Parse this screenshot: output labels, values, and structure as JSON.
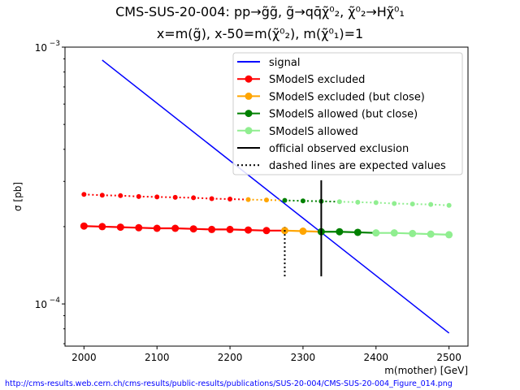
{
  "chart_data": {
    "type": "line",
    "title_line1": "CMS-SUS-20-004: pp→g̃g̃, g̃→qq̄χ̃⁰₂, χ̃⁰₂→Hχ̃⁰₁",
    "title_line2": "x=m(g̃), x-50=m(χ̃⁰₂), m(χ̃⁰₁)=1",
    "xlabel": "m(mother) [GeV]",
    "ylabel": "σ [pb]",
    "xlim": [
      1974,
      2526
    ],
    "ylim": [
      6.85e-05,
      0.001
    ],
    "yscale": "log",
    "x_ticks": [
      2000,
      2100,
      2200,
      2300,
      2400,
      2500
    ],
    "y_ticks": [
      {
        "value": 0.001,
        "label": "10",
        "exp": "−3"
      },
      {
        "value": 0.0001,
        "label": "10",
        "exp": "−4"
      }
    ],
    "legend_position": "top-right",
    "legend": [
      {
        "label": "signal",
        "color": "#0000ff",
        "style": "line"
      },
      {
        "label": "SModelS excluded",
        "color": "#ff0000",
        "style": "marker"
      },
      {
        "label": "SModelS excluded (but close)",
        "color": "#ffa500",
        "style": "marker"
      },
      {
        "label": "SModelS allowed (but close)",
        "color": "#008000",
        "style": "marker"
      },
      {
        "label": "SModelS allowed",
        "color": "#90ee90",
        "style": "marker"
      },
      {
        "label": "official observed exclusion",
        "color": "#000000",
        "style": "line"
      },
      {
        "label": "dashed lines are expected values",
        "color": "#000000",
        "style": "dotted"
      }
    ],
    "signal": {
      "x": [
        2025,
        2500
      ],
      "y": [
        0.00089,
        7.7e-05
      ]
    },
    "x": [
      2000,
      2025,
      2050,
      2075,
      2100,
      2125,
      2150,
      2175,
      2200,
      2225,
      2250,
      2275,
      2300,
      2325,
      2350,
      2375,
      2400,
      2425,
      2450,
      2475,
      2500
    ],
    "observed": {
      "y": [
        0.000201,
        0.0002,
        0.000199,
        0.000198,
        0.000197,
        0.000197,
        0.000196,
        0.000195,
        0.000195,
        0.000194,
        0.000193,
        0.000193,
        0.000192,
        0.000191,
        0.000191,
        0.00019,
        0.000189,
        0.000189,
        0.000188,
        0.000187,
        0.000186
      ],
      "status": [
        "excluded",
        "excluded",
        "excluded",
        "excluded",
        "excluded",
        "excluded",
        "excluded",
        "excluded",
        "excluded",
        "excluded",
        "excluded",
        "excluded_close",
        "excluded_close",
        "allowed_close",
        "allowed_close",
        "allowed_close",
        "allowed",
        "allowed",
        "allowed",
        "allowed",
        "allowed"
      ]
    },
    "expected": {
      "y": [
        0.000267,
        0.000265,
        0.000264,
        0.000262,
        0.000261,
        0.00026,
        0.000259,
        0.000257,
        0.000256,
        0.000255,
        0.000254,
        0.000253,
        0.000252,
        0.000251,
        0.00025,
        0.000249,
        0.000248,
        0.000246,
        0.000245,
        0.000244,
        0.000242
      ],
      "status": [
        "excluded",
        "excluded",
        "excluded",
        "excluded",
        "excluded",
        "excluded",
        "excluded",
        "excluded",
        "excluded",
        "excluded_close",
        "excluded_close",
        "allowed_close",
        "allowed_close",
        "allowed_close",
        "allowed",
        "allowed",
        "allowed",
        "allowed",
        "allowed",
        "allowed",
        "allowed"
      ]
    },
    "official_observed_exclusion": {
      "x": 2325,
      "y": [
        0.000128,
        0.000303
      ]
    },
    "official_expected_exclusion": {
      "x": 2275,
      "y": [
        0.000128,
        0.000199
      ]
    },
    "status_colors": {
      "excluded": "#ff0000",
      "excluded_close": "#ffa500",
      "allowed_close": "#008000",
      "allowed": "#90ee90"
    }
  },
  "footer_url": "http://cms-results.web.cern.ch/cms-results/public-results/publications/SUS-20-004/CMS-SUS-20-004_Figure_014.png"
}
